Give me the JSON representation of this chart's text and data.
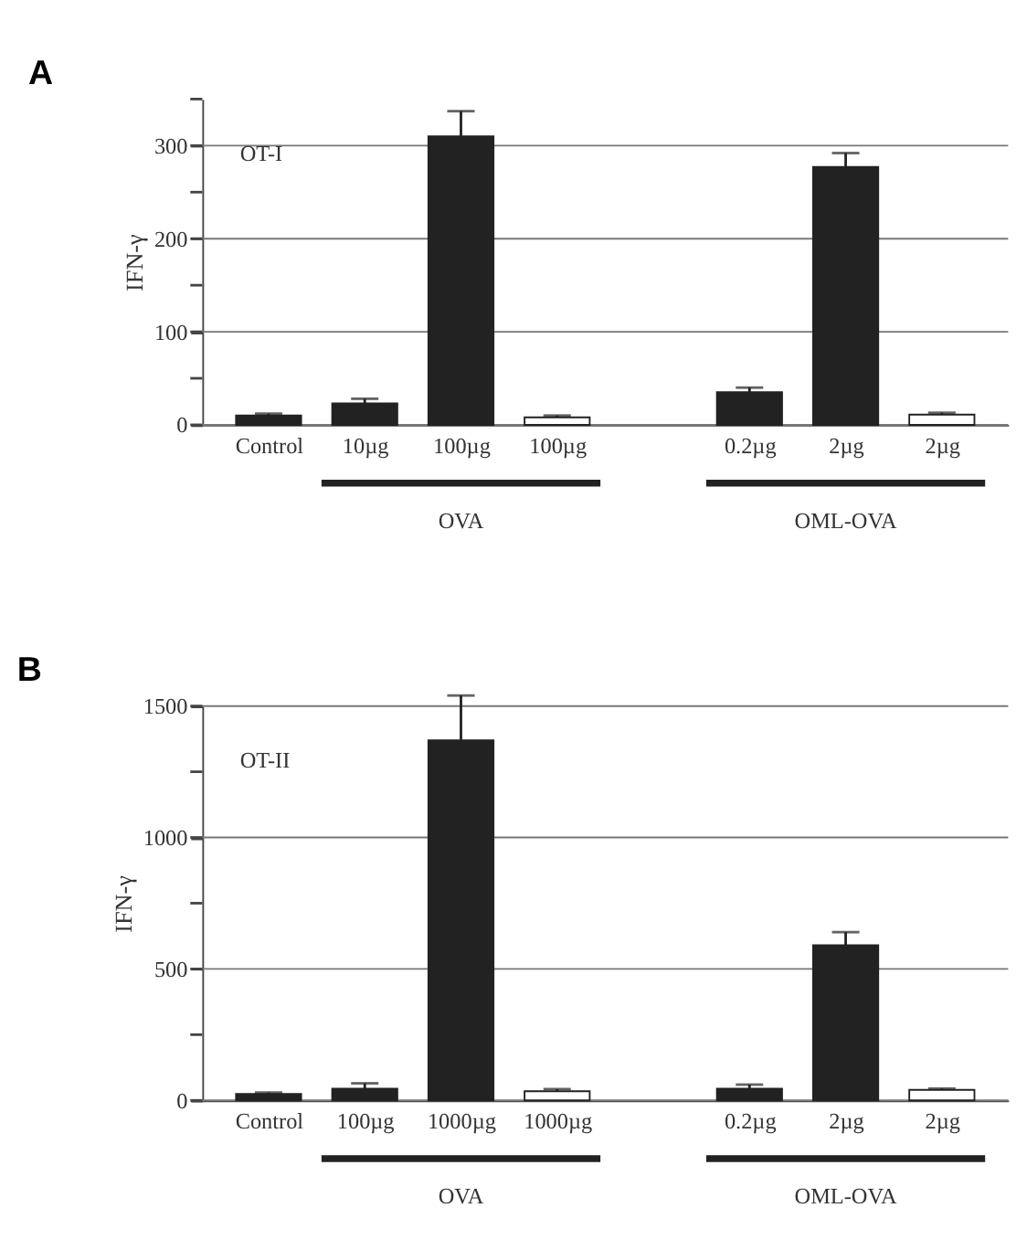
{
  "chart_data": [
    {
      "type": "bar",
      "title": "A",
      "ylabel": "IFN-γ",
      "categories": [
        "Control",
        "10µg",
        "100µg",
        "100µg",
        null,
        "0.2µg",
        "2µg",
        "2µg"
      ],
      "values": [
        10,
        23,
        310,
        8,
        null,
        35,
        277,
        11
      ],
      "errors": [
        2,
        5,
        27,
        2,
        null,
        5,
        15,
        2
      ],
      "colors": [
        "#222222",
        "#222222",
        "#222222",
        "#ffffff",
        null,
        "#222222",
        "#222222",
        "#ffffff"
      ],
      "ylim": [
        0,
        350
      ],
      "yticks": [
        0,
        {
          "value": 50,
          "label": null
        },
        100,
        {
          "value": 150,
          "label": null
        },
        200,
        {
          "value": 250,
          "label": null
        },
        300,
        {
          "value": 350,
          "label": null
        }
      ],
      "grid": "y",
      "annotations": [
        "OT-I",
        "OVA",
        "OML-OVA"
      ]
    },
    {
      "type": "bar",
      "title": "B",
      "ylabel": "IFN-γ",
      "categories": [
        "Control",
        "100µg",
        "1000µg",
        "1000µg",
        null,
        "0.2µg",
        "2µg",
        "2µg"
      ],
      "values": [
        25,
        45,
        1370,
        35,
        null,
        45,
        590,
        40
      ],
      "errors": [
        5,
        20,
        170,
        8,
        null,
        15,
        50,
        5
      ],
      "colors": [
        "#222222",
        "#222222",
        "#222222",
        "#ffffff",
        null,
        "#222222",
        "#222222",
        "#ffffff"
      ],
      "ylim": [
        0,
        1500
      ],
      "yticks": [
        0,
        {
          "value": 250,
          "label": null
        },
        500,
        {
          "value": 750,
          "label": null
        },
        1000,
        {
          "value": 1250,
          "label": null
        },
        1500
      ],
      "grid": "y",
      "annotations": [
        "OT-II",
        "OVA",
        "OML-OVA"
      ]
    }
  ]
}
